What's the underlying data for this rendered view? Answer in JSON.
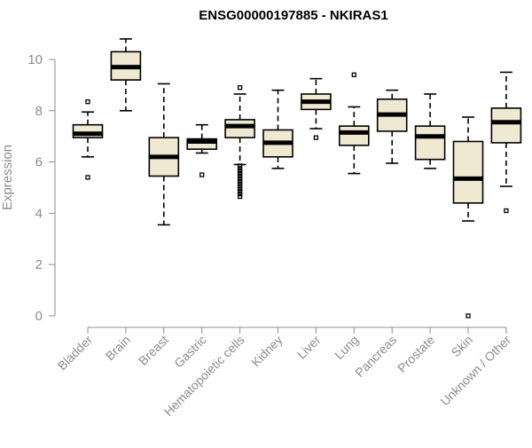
{
  "chart_data": {
    "type": "box",
    "title": "ENSG00000197885 - NKIRAS1",
    "ylabel": "Expression",
    "xlabel": "",
    "ylim": [
      0,
      11
    ],
    "yticks": [
      0,
      2,
      4,
      6,
      8,
      10
    ],
    "box_fill": "#efe9d2",
    "categories": [
      "Bladder",
      "Brain",
      "Breast",
      "Gastric",
      "Hematopoietic cells",
      "Kidney",
      "Liver",
      "Lung",
      "Pancreas",
      "Prostate",
      "Skin",
      "Unknown / Other"
    ],
    "boxes": [
      {
        "category": "Bladder",
        "min": 6.2,
        "q1": 6.95,
        "median": 7.1,
        "q3": 7.45,
        "max": 7.95,
        "outliers": [
          8.35,
          5.4
        ]
      },
      {
        "category": "Brain",
        "min": 8.0,
        "q1": 9.2,
        "median": 9.7,
        "q3": 10.3,
        "max": 10.8,
        "outliers": []
      },
      {
        "category": "Breast",
        "min": 3.55,
        "q1": 5.45,
        "median": 6.2,
        "q3": 6.95,
        "max": 9.05,
        "outliers": []
      },
      {
        "category": "Gastric",
        "min": 6.35,
        "q1": 6.5,
        "median": 6.8,
        "q3": 6.9,
        "max": 7.45,
        "outliers": [
          5.5
        ]
      },
      {
        "category": "Hematopoietic cells",
        "min": 5.9,
        "q1": 6.95,
        "median": 7.4,
        "q3": 7.65,
        "max": 8.65,
        "outliers": [
          8.9,
          5.85,
          5.75,
          5.65,
          5.55,
          5.45,
          5.35,
          5.25,
          5.15,
          5.05,
          4.95,
          4.85,
          4.75,
          4.65
        ]
      },
      {
        "category": "Kidney",
        "min": 5.75,
        "q1": 6.2,
        "median": 6.75,
        "q3": 7.25,
        "max": 8.8,
        "outliers": []
      },
      {
        "category": "Liver",
        "min": 7.3,
        "q1": 8.05,
        "median": 8.35,
        "q3": 8.65,
        "max": 9.25,
        "outliers": [
          6.95
        ]
      },
      {
        "category": "Lung",
        "min": 5.55,
        "q1": 6.65,
        "median": 7.15,
        "q3": 7.4,
        "max": 8.15,
        "outliers": [
          9.4
        ]
      },
      {
        "category": "Pancreas",
        "min": 5.95,
        "q1": 7.2,
        "median": 7.85,
        "q3": 8.45,
        "max": 8.8,
        "outliers": []
      },
      {
        "category": "Prostate",
        "min": 5.75,
        "q1": 6.1,
        "median": 7.0,
        "q3": 7.4,
        "max": 8.65,
        "outliers": []
      },
      {
        "category": "Skin",
        "min": 3.7,
        "q1": 4.4,
        "median": 5.35,
        "q3": 6.8,
        "max": 7.75,
        "outliers": [
          0.0
        ]
      },
      {
        "category": "Unknown / Other",
        "min": 5.05,
        "q1": 6.75,
        "median": 7.55,
        "q3": 8.1,
        "max": 9.5,
        "outliers": [
          4.1
        ]
      }
    ]
  }
}
